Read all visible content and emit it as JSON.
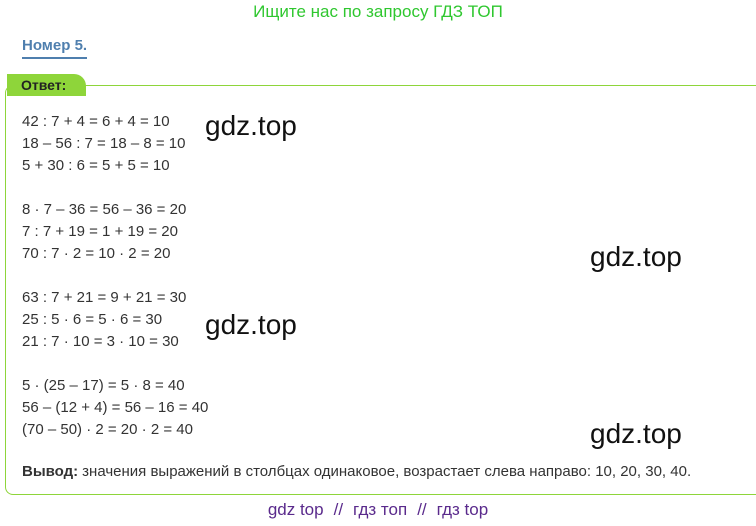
{
  "header": "Ищите нас по запросу ГДЗ ТОП",
  "number_title": "Номер 5.",
  "answer_label": "Ответ:",
  "groups": [
    [
      "42 : 7 + 4 = 6 + 4 = 10",
      "18 – 56 : 7 = 18 – 8 = 10",
      "5 + 30 : 6 = 5 + 5 = 10"
    ],
    [
      "8 · 7 – 36 = 56 – 36 = 20",
      "7 : 7 + 19 = 1 + 19 = 20",
      "70 : 7 · 2 = 10 · 2 = 20"
    ],
    [
      "63 : 7 + 21 = 9 + 21 = 30",
      "25 : 5 · 6 = 5 · 6 = 30",
      "21 : 7 · 10 = 3 · 10 = 30"
    ],
    [
      "5 · (25 – 17) = 5 · 8 = 40",
      "56 – (12 + 4) = 56 – 16 = 40",
      "(70 – 50) · 2 = 20 · 2 = 40"
    ]
  ],
  "watermarks": [
    "gdz.top",
    "gdz.top",
    "gdz.top",
    "gdz.top"
  ],
  "conclusion": {
    "label": "Вывод:",
    "text": "значения выражений в столбцах одинаковое, возрастает слева направо: 10, 20, 30, 40."
  },
  "footer": [
    "gdz top",
    "//",
    "гдз топ",
    "//",
    "гдз top"
  ]
}
